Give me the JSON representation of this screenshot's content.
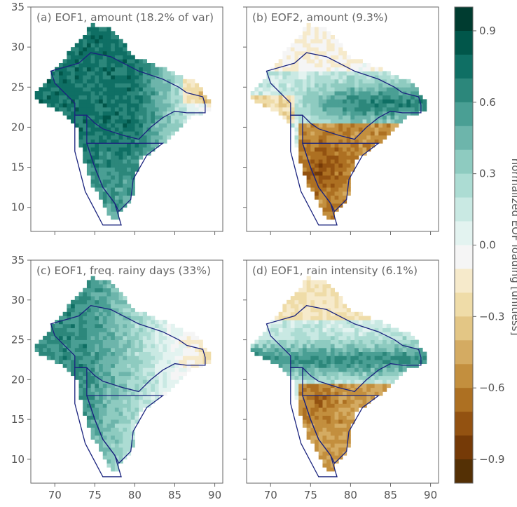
{
  "chart_data": {
    "type": "heatmap",
    "colormap": "BrBG (diverging brown-white-teal)",
    "shared_x_ticks": [
      70,
      75,
      80,
      85,
      90
    ],
    "shared_y_ticks": [
      10,
      15,
      20,
      25,
      30,
      35
    ],
    "xlim": [
      67,
      91
    ],
    "ylim": [
      7,
      35
    ],
    "panels": [
      {
        "title": "(a) EOF1, amount (18.2% of var)",
        "pattern": "mostly positive; strongest over west and central India, weak/negative in far northeast"
      },
      {
        "title": "(b) EOF2, amount (9.3%)",
        "pattern": "dipole: positive over northeast/central belt, strongly negative over southern peninsula"
      },
      {
        "title": "(c) EOF1, freq. rainy days (33%)",
        "pattern": "uniformly positive, strongest in west"
      },
      {
        "title": "(d) EOF1, rain intensity (6.1%)",
        "pattern": "positive over central belt, negative in south and north edges"
      }
    ],
    "colorbar": {
      "label": "normalized EOF loading [unitless]",
      "ticks": [
        "0.9",
        "0.6",
        "0.3",
        "0.0",
        "−0.3",
        "−0.6",
        "−0.9"
      ],
      "tick_values": [
        0.9,
        0.6,
        0.3,
        0.0,
        -0.3,
        -0.6,
        -0.9
      ],
      "range": [
        -1.0,
        1.0
      ],
      "n_bins": 20,
      "colors_top_to_bottom": [
        "#003c30",
        "#01564a",
        "#0f6f64",
        "#2c877b",
        "#4a9f94",
        "#6db5ab",
        "#8ecbc0",
        "#acdcd3",
        "#c9e9e3",
        "#e3f3f0",
        "#f5f5f5",
        "#f6eacb",
        "#efdca8",
        "#e3c685",
        "#d4ab62",
        "#c38f3e",
        "#ad7022",
        "#935211",
        "#753a07",
        "#543005"
      ]
    },
    "region_outline_color": "#1a237e",
    "grid": false
  }
}
